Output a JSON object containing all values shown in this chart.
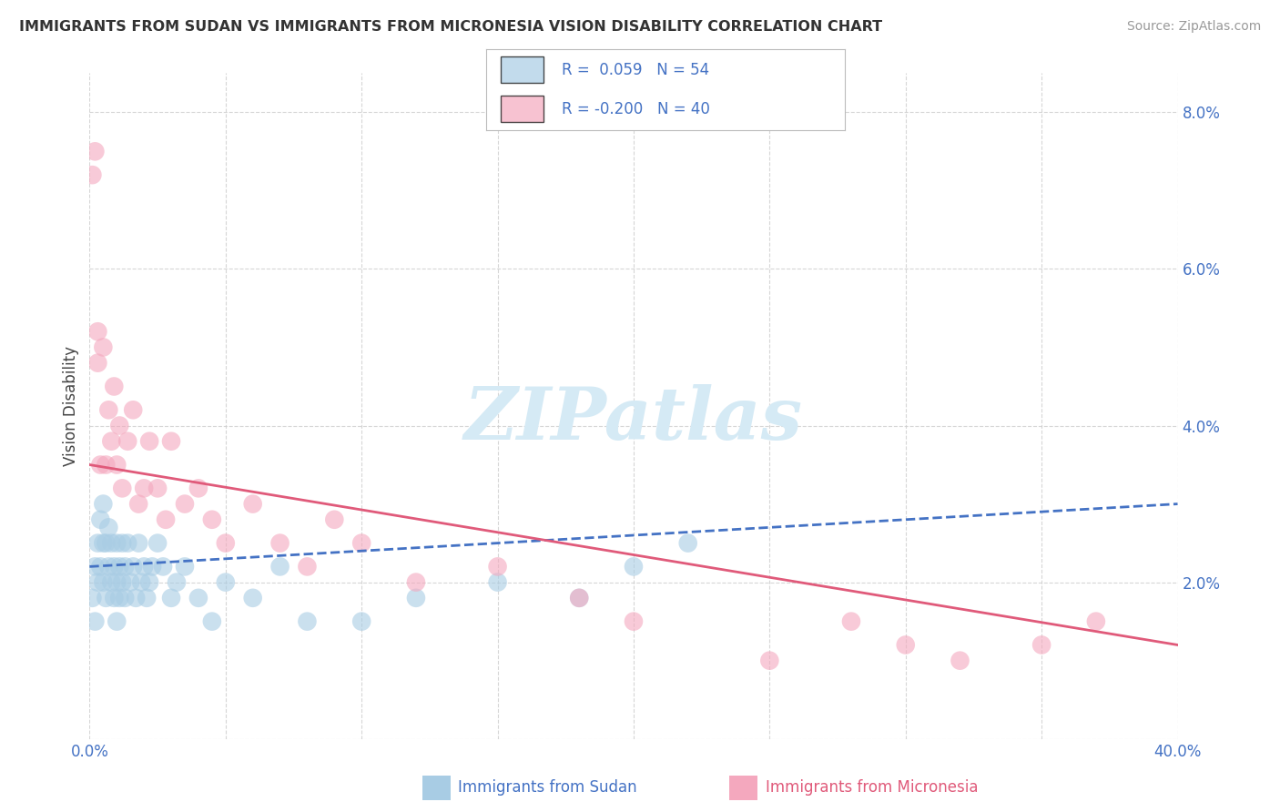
{
  "title": "IMMIGRANTS FROM SUDAN VS IMMIGRANTS FROM MICRONESIA VISION DISABILITY CORRELATION CHART",
  "source": "Source: ZipAtlas.com",
  "xlabel_sudan": "Immigrants from Sudan",
  "xlabel_micronesia": "Immigrants from Micronesia",
  "ylabel": "Vision Disability",
  "xlim": [
    0.0,
    0.4
  ],
  "ylim": [
    0.0,
    0.085
  ],
  "R_sudan": 0.059,
  "N_sudan": 54,
  "R_micronesia": -0.2,
  "N_micronesia": 40,
  "sudan_color": "#a8cce4",
  "micronesia_color": "#f4a8be",
  "trend_sudan_color": "#4472c4",
  "trend_micronesia_color": "#e05a7a",
  "watermark_color": "#d5eaf5",
  "background_color": "#ffffff",
  "grid_color": "#cccccc",
  "sudan_x": [
    0.001,
    0.002,
    0.002,
    0.003,
    0.003,
    0.004,
    0.004,
    0.005,
    0.005,
    0.005,
    0.006,
    0.006,
    0.007,
    0.007,
    0.008,
    0.008,
    0.009,
    0.009,
    0.01,
    0.01,
    0.01,
    0.011,
    0.011,
    0.012,
    0.012,
    0.013,
    0.013,
    0.014,
    0.015,
    0.016,
    0.017,
    0.018,
    0.019,
    0.02,
    0.021,
    0.022,
    0.023,
    0.025,
    0.027,
    0.03,
    0.032,
    0.035,
    0.04,
    0.045,
    0.05,
    0.06,
    0.07,
    0.08,
    0.1,
    0.12,
    0.15,
    0.18,
    0.2,
    0.22
  ],
  "sudan_y": [
    0.018,
    0.022,
    0.015,
    0.025,
    0.02,
    0.028,
    0.022,
    0.02,
    0.025,
    0.03,
    0.018,
    0.025,
    0.022,
    0.027,
    0.02,
    0.025,
    0.018,
    0.022,
    0.015,
    0.02,
    0.025,
    0.018,
    0.022,
    0.025,
    0.02,
    0.018,
    0.022,
    0.025,
    0.02,
    0.022,
    0.018,
    0.025,
    0.02,
    0.022,
    0.018,
    0.02,
    0.022,
    0.025,
    0.022,
    0.018,
    0.02,
    0.022,
    0.018,
    0.015,
    0.02,
    0.018,
    0.022,
    0.015,
    0.015,
    0.018,
    0.02,
    0.018,
    0.022,
    0.025
  ],
  "micronesia_x": [
    0.001,
    0.002,
    0.003,
    0.003,
    0.004,
    0.005,
    0.006,
    0.007,
    0.008,
    0.009,
    0.01,
    0.011,
    0.012,
    0.014,
    0.016,
    0.018,
    0.02,
    0.022,
    0.025,
    0.028,
    0.03,
    0.035,
    0.04,
    0.045,
    0.05,
    0.06,
    0.07,
    0.08,
    0.09,
    0.1,
    0.12,
    0.15,
    0.18,
    0.2,
    0.25,
    0.28,
    0.3,
    0.32,
    0.35,
    0.37
  ],
  "micronesia_y": [
    0.072,
    0.075,
    0.048,
    0.052,
    0.035,
    0.05,
    0.035,
    0.042,
    0.038,
    0.045,
    0.035,
    0.04,
    0.032,
    0.038,
    0.042,
    0.03,
    0.032,
    0.038,
    0.032,
    0.028,
    0.038,
    0.03,
    0.032,
    0.028,
    0.025,
    0.03,
    0.025,
    0.022,
    0.028,
    0.025,
    0.02,
    0.022,
    0.018,
    0.015,
    0.01,
    0.015,
    0.012,
    0.01,
    0.012,
    0.015
  ],
  "trend_sudan_x0": 0.0,
  "trend_sudan_y0": 0.022,
  "trend_sudan_x1": 0.4,
  "trend_sudan_y1": 0.03,
  "trend_micro_x0": 0.0,
  "trend_micro_y0": 0.035,
  "trend_micro_x1": 0.4,
  "trend_micro_y1": 0.012
}
